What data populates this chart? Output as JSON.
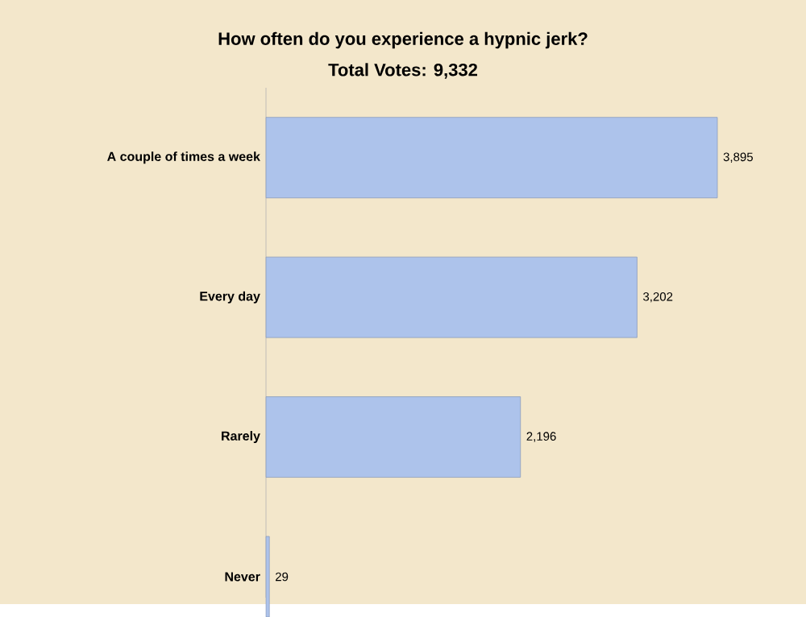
{
  "chart_data": {
    "type": "bar",
    "orientation": "horizontal",
    "title": "How often do you experience a hypnic jerk?",
    "subtitle": "Total Votes: 9,332",
    "categories": [
      "A couple of times a week",
      "Every day",
      "Rarely",
      "Never"
    ],
    "values": [
      3895,
      3202,
      2196,
      29
    ],
    "value_labels": [
      "3,895",
      "3,202",
      "2,196",
      "29"
    ],
    "color": "#adc3eb"
  }
}
